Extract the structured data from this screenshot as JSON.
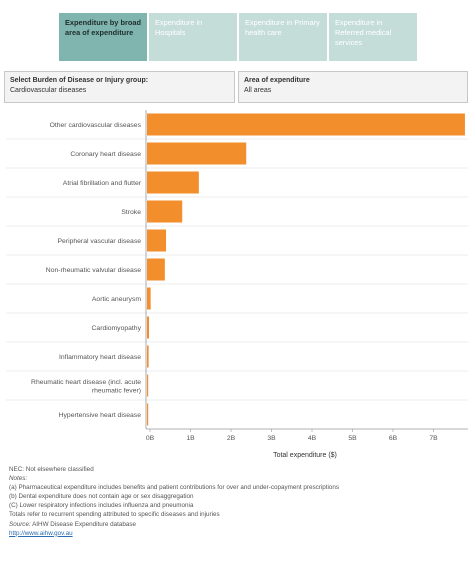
{
  "tabs": [
    {
      "label": "Expenditure by broad area of expenditure",
      "active": true
    },
    {
      "label": "Expenditure in Hospitals",
      "active": false
    },
    {
      "label": "Expenditure in Primary health care",
      "active": false
    },
    {
      "label": "Expenditure in Referred medical services",
      "active": false
    }
  ],
  "filters": {
    "group": {
      "label": "Select Burden of Disease or Injury group:",
      "value": "Cardiovascular diseases"
    },
    "area": {
      "label": "Area of expenditure",
      "value": "All areas"
    }
  },
  "chart_data": {
    "type": "bar",
    "orientation": "horizontal",
    "categories": [
      "Other cardiovascular diseases",
      "Coronary heart disease",
      "Atrial fibrillation and flutter",
      "Stroke",
      "Peripheral vascular disease",
      "Non-rheumatic valvular disease",
      "Aortic aneurysm",
      "Cardiomyopathy",
      "Inflammatory heart disease",
      "Rheumatic heart disease (incl. acute rheumatic fever)",
      "Hypertensive heart disease"
    ],
    "values": [
      7.85,
      2.45,
      1.28,
      0.87,
      0.47,
      0.44,
      0.09,
      0.05,
      0.04,
      0.02,
      0.01
    ],
    "xlabel": "Total expenditure ($)",
    "xticks": [
      "0B",
      "1B",
      "2B",
      "3B",
      "4B",
      "5B",
      "6B",
      "7B"
    ],
    "xlim": [
      0,
      7.5
    ],
    "x_units": "billions of dollars",
    "bar_color": "#f28e2b",
    "grid": false
  },
  "notes": {
    "nec": "NEC: Not elsewhere classified",
    "heading": "Notes:",
    "a": "(a) Pharmaceutical expenditure includes benefits and patient contributions for over and under-copayment prescriptions",
    "b": "(b) Dental expenditure does not contain age or sex disaggregation",
    "c": "(C) Lower respiratory infections includes influenza and pneumonia",
    "totals": "Totals refer to recurrent spending attributed to specific diseases and injuries",
    "source_label": "Source:",
    "source": " AIHW Disease Expenditure database",
    "link": "http://www.aihw.gov.au"
  }
}
